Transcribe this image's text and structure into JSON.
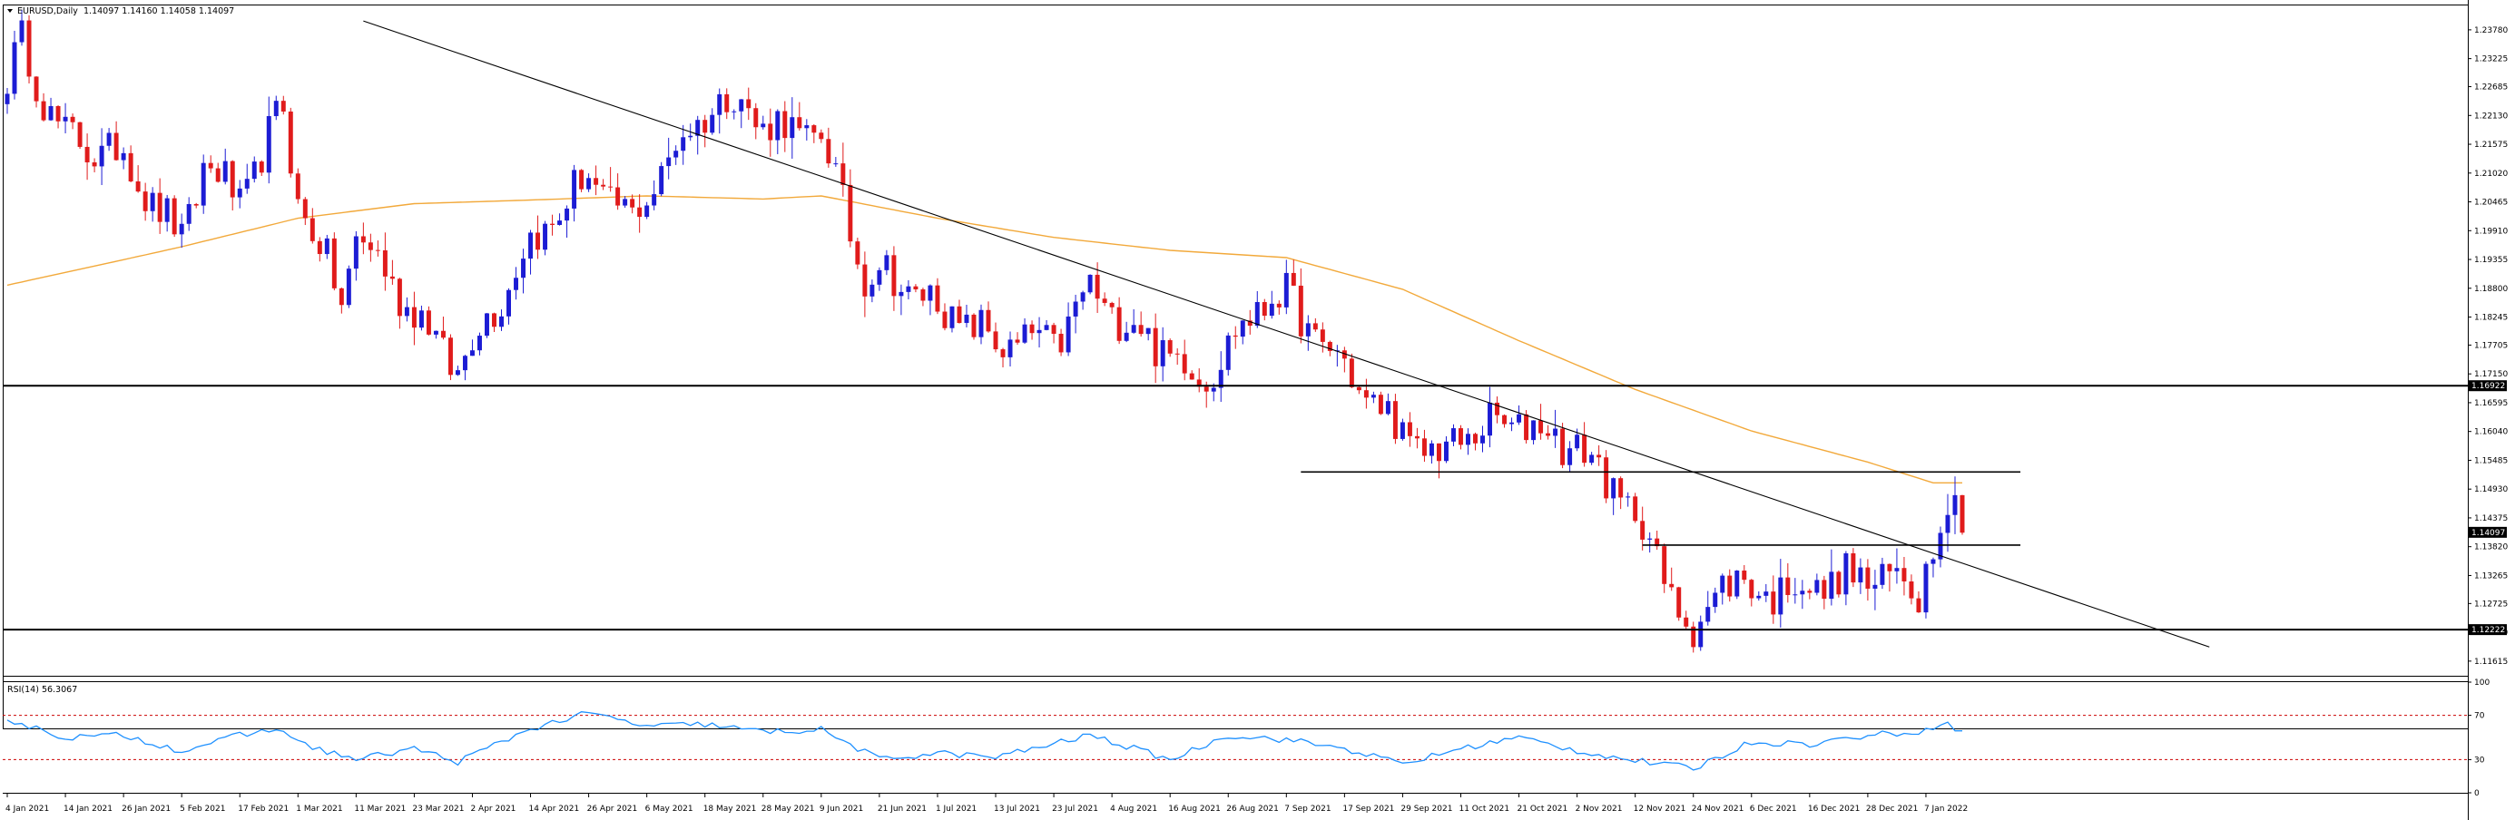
{
  "header": {
    "symbol": "EURUSD,Daily",
    "ohlc": "1.14097 1.14160 1.14058 1.14097",
    "menu_icon": "triangle-down-icon"
  },
  "rsi_header": "RSI(14) 56.3067",
  "colors": {
    "bull": "#1c1cd4",
    "bear": "#e01b1b",
    "ma": "#f2a93b",
    "rsi": "#1e90ff",
    "level_line": "#000000",
    "trend_line": "#000000",
    "rsi_levels": "#cc0000",
    "tag_bg": "#000000"
  },
  "chart_data": [
    {
      "type": "candlestick",
      "title": "EURUSD,Daily",
      "ylim": [
        1.1135,
        1.2425
      ],
      "y_ticks": [
        "1.23780",
        "1.23225",
        "1.22685",
        "1.22130",
        "1.21575",
        "1.21020",
        "1.20465",
        "1.19910",
        "1.19355",
        "1.18800",
        "1.18245",
        "1.17705",
        "1.17150",
        "1.16595",
        "1.16040",
        "1.15485",
        "1.14930",
        "1.14375",
        "1.13820",
        "1.13265",
        "1.12725",
        "1.12170",
        "1.11615"
      ],
      "x_ticks": [
        "4 Jan 2021",
        "14 Jan 2021",
        "26 Jan 2021",
        "5 Feb 2021",
        "17 Feb 2021",
        "1 Mar 2021",
        "11 Mar 2021",
        "23 Mar 2021",
        "2 Apr 2021",
        "14 Apr 2021",
        "26 Apr 2021",
        "6 May 2021",
        "18 May 2021",
        "28 May 2021",
        "9 Jun 2021",
        "21 Jun 2021",
        "1 Jul 2021",
        "13 Jul 2021",
        "23 Jul 2021",
        "4 Aug 2021",
        "16 Aug 2021",
        "26 Aug 2021",
        "7 Sep 2021",
        "17 Sep 2021",
        "29 Sep 2021",
        "11 Oct 2021",
        "21 Oct 2021",
        "2 Nov 2021",
        "12 Nov 2021",
        "24 Nov 2021",
        "6 Dec 2021",
        "16 Dec 2021",
        "28 Dec 2021",
        "7 Jan 2022"
      ],
      "price_tags": [
        "1.16922",
        "1.14097",
        "1.12222"
      ],
      "horizontal_levels": [
        {
          "price": 1.16922,
          "span": "full"
        },
        {
          "price": 1.12222,
          "span": "full"
        },
        {
          "price": 1.1526,
          "from": "9 Sep 2021",
          "to": "10 Jan 2022"
        },
        {
          "price": 1.1385,
          "from": "15 Nov 2021",
          "to": "10 Jan 2022"
        }
      ],
      "trendline": {
        "from": {
          "date": "12 Mar 2021",
          "price": 1.2395
        },
        "to": {
          "date": "13 Jan 2022",
          "price": 1.1355
        }
      },
      "moving_average_anchors": [
        {
          "date": "4 Jan 2021",
          "price": 1.1886
        },
        {
          "date": "26 Jan 2021",
          "price": 1.1935
        },
        {
          "date": "5 Feb 2021",
          "price": 1.196
        },
        {
          "date": "1 Mar 2021",
          "price": 1.2015
        },
        {
          "date": "23 Mar 2021",
          "price": 1.2043
        },
        {
          "date": "14 Apr 2021",
          "price": 1.205
        },
        {
          "date": "6 May 2021",
          "price": 1.2058
        },
        {
          "date": "28 May 2021",
          "price": 1.2052
        },
        {
          "date": "9 Jun 2021",
          "price": 1.2058
        },
        {
          "date": "1 Jul 2021",
          "price": 1.2015
        },
        {
          "date": "23 Jul 2021",
          "price": 1.1978
        },
        {
          "date": "16 Aug 2021",
          "price": 1.1953
        },
        {
          "date": "7 Sep 2021",
          "price": 1.1939
        },
        {
          "date": "29 Sep 2021",
          "price": 1.1878
        },
        {
          "date": "21 Oct 2021",
          "price": 1.1779
        },
        {
          "date": "12 Nov 2021",
          "price": 1.1685
        },
        {
          "date": "6 Dec 2021",
          "price": 1.1605
        },
        {
          "date": "28 Dec 2021",
          "price": 1.1545
        },
        {
          "date": "10 Jan 2022",
          "price": 1.1505
        }
      ],
      "price_path": [
        {
          "date": "4 Jan 2021",
          "close": 1.2285
        },
        {
          "date": "6 Jan 2021",
          "close": 1.2345
        },
        {
          "date": "14 Jan 2021",
          "close": 1.2165
        },
        {
          "date": "26 Jan 2021",
          "close": 1.2135
        },
        {
          "date": "5 Feb 2021",
          "close": 1.1965
        },
        {
          "date": "10 Feb 2021",
          "close": 1.2125
        },
        {
          "date": "17 Feb 2021",
          "close": 1.2045
        },
        {
          "date": "25 Feb 2021",
          "close": 1.2225
        },
        {
          "date": "1 Mar 2021",
          "close": 1.2055
        },
        {
          "date": "9 Mar 2021",
          "close": 1.1855
        },
        {
          "date": "11 Mar 2021",
          "close": 1.1985
        },
        {
          "date": "23 Mar 2021",
          "close": 1.1835
        },
        {
          "date": "31 Mar 2021",
          "close": 1.1725
        },
        {
          "date": "2 Apr 2021",
          "close": 1.1775
        },
        {
          "date": "14 Apr 2021",
          "close": 1.1965
        },
        {
          "date": "26 Apr 2021",
          "close": 1.2095
        },
        {
          "date": "4 May 2021",
          "close": 1.2005
        },
        {
          "date": "6 May 2021",
          "close": 1.2065
        },
        {
          "date": "18 May 2021",
          "close": 1.2225
        },
        {
          "date": "25 May 2021",
          "close": 1.2245
        },
        {
          "date": "28 May 2021",
          "close": 1.2195
        },
        {
          "date": "9 Jun 2021",
          "close": 1.2175
        },
        {
          "date": "17 Jun 2021",
          "close": 1.1905
        },
        {
          "date": "21 Jun 2021",
          "close": 1.1915
        },
        {
          "date": "1 Jul 2021",
          "close": 1.1845
        },
        {
          "date": "13 Jul 2021",
          "close": 1.1775
        },
        {
          "date": "23 Jul 2021",
          "close": 1.1775
        },
        {
          "date": "30 Jul 2021",
          "close": 1.1875
        },
        {
          "date": "4 Aug 2021",
          "close": 1.1835
        },
        {
          "date": "16 Aug 2021",
          "close": 1.1755
        },
        {
          "date": "20 Aug 2021",
          "close": 1.1705
        },
        {
          "date": "26 Aug 2021",
          "close": 1.1765
        },
        {
          "date": "3 Sep 2021",
          "close": 1.1875
        },
        {
          "date": "7 Sep 2021",
          "close": 1.1855
        },
        {
          "date": "17 Sep 2021",
          "close": 1.1725
        },
        {
          "date": "29 Sep 2021",
          "close": 1.1595
        },
        {
          "date": "6 Oct 2021",
          "close": 1.1555
        },
        {
          "date": "11 Oct 2021",
          "close": 1.1595
        },
        {
          "date": "21 Oct 2021",
          "close": 1.1625
        },
        {
          "date": "26 Oct 2021",
          "close": 1.1605
        },
        {
          "date": "2 Nov 2021",
          "close": 1.1575
        },
        {
          "date": "12 Nov 2021",
          "close": 1.1445
        },
        {
          "date": "24 Nov 2021",
          "close": 1.1205
        },
        {
          "date": "30 Nov 2021",
          "close": 1.1325
        },
        {
          "date": "6 Dec 2021",
          "close": 1.1295
        },
        {
          "date": "16 Dec 2021",
          "close": 1.1305
        },
        {
          "date": "28 Dec 2021",
          "close": 1.1325
        },
        {
          "date": "6 Jan 2022",
          "close": 1.1305
        },
        {
          "date": "7 Jan 2022",
          "close": 1.1355
        },
        {
          "date": "11 Jan 2022",
          "close": 1.1435
        },
        {
          "date": "13 Jan 2022",
          "close": 1.1455
        },
        {
          "date": "14 Jan 2022",
          "close": 1.1409
        }
      ]
    },
    {
      "type": "line",
      "title": "RSI(14) 56.3067",
      "ylim": [
        0,
        100
      ],
      "y_ticks": [
        "100",
        "70",
        "30",
        "0"
      ],
      "levels": [
        70,
        30
      ],
      "series": [
        {
          "values": [
            {
              "date": "4 Jan 2021",
              "value": 66
            },
            {
              "date": "14 Jan 2021",
              "value": 50
            },
            {
              "date": "26 Jan 2021",
              "value": 52
            },
            {
              "date": "5 Feb 2021",
              "value": 38
            },
            {
              "date": "17 Feb 2021",
              "value": 52
            },
            {
              "date": "25 Feb 2021",
              "value": 58
            },
            {
              "date": "1 Mar 2021",
              "value": 45
            },
            {
              "date": "11 Mar 2021",
              "value": 30
            },
            {
              "date": "23 Mar 2021",
              "value": 40
            },
            {
              "date": "31 Mar 2021",
              "value": 28
            },
            {
              "date": "14 Apr 2021",
              "value": 58
            },
            {
              "date": "26 Apr 2021",
              "value": 72
            },
            {
              "date": "6 May 2021",
              "value": 60
            },
            {
              "date": "18 May 2021",
              "value": 62
            },
            {
              "date": "28 May 2021",
              "value": 55
            },
            {
              "date": "9 Jun 2021",
              "value": 57
            },
            {
              "date": "21 Jun 2021",
              "value": 30
            },
            {
              "date": "1 Jul 2021",
              "value": 36
            },
            {
              "date": "13 Jul 2021",
              "value": 32
            },
            {
              "date": "30 Jul 2021",
              "value": 52
            },
            {
              "date": "16 Aug 2021",
              "value": 30
            },
            {
              "date": "26 Aug 2021",
              "value": 52
            },
            {
              "date": "7 Sep 2021",
              "value": 48
            },
            {
              "date": "17 Sep 2021",
              "value": 40
            },
            {
              "date": "29 Sep 2021",
              "value": 26
            },
            {
              "date": "11 Oct 2021",
              "value": 40
            },
            {
              "date": "21 Oct 2021",
              "value": 50
            },
            {
              "date": "2 Nov 2021",
              "value": 38
            },
            {
              "date": "12 Nov 2021",
              "value": 29
            },
            {
              "date": "24 Nov 2021",
              "value": 22
            },
            {
              "date": "6 Dec 2021",
              "value": 46
            },
            {
              "date": "16 Dec 2021",
              "value": 44
            },
            {
              "date": "28 Dec 2021",
              "value": 52
            },
            {
              "date": "7 Jan 2022",
              "value": 56
            },
            {
              "date": "11 Jan 2022",
              "value": 64
            },
            {
              "date": "14 Jan 2022",
              "value": 56
            }
          ]
        }
      ]
    }
  ]
}
